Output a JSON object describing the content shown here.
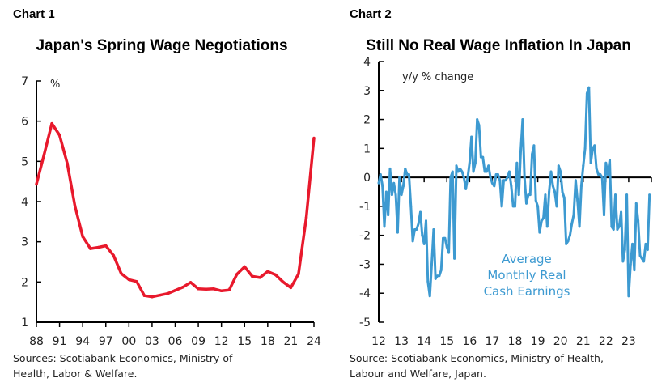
{
  "chart_data": [
    {
      "header": "Chart 1",
      "type": "line",
      "title": "Japan's Spring Wage Negotiations",
      "unit_label": "%",
      "ylim": [
        1,
        7
      ],
      "yticks": [
        1,
        2,
        3,
        4,
        5,
        6,
        7
      ],
      "xlim": [
        1988,
        2024
      ],
      "xticks": [
        1988,
        1991,
        1994,
        1997,
        2000,
        2003,
        2006,
        2009,
        2012,
        2015,
        2018,
        2021,
        2024
      ],
      "xtick_labels": [
        "88",
        "91",
        "94",
        "97",
        "00",
        "03",
        "06",
        "09",
        "12",
        "15",
        "18",
        "21",
        "24"
      ],
      "grid": false,
      "color": "#e8192c",
      "x": [
        1988,
        1989,
        1990,
        1991,
        1992,
        1993,
        1994,
        1995,
        1996,
        1997,
        1998,
        1999,
        2000,
        2001,
        2002,
        2003,
        2004,
        2005,
        2006,
        2007,
        2008,
        2009,
        2010,
        2011,
        2012,
        2013,
        2014,
        2015,
        2016,
        2017,
        2018,
        2019,
        2020,
        2021,
        2022,
        2023,
        2024
      ],
      "values": [
        4.43,
        5.17,
        5.94,
        5.65,
        4.95,
        3.89,
        3.13,
        2.83,
        2.86,
        2.9,
        2.66,
        2.21,
        2.06,
        2.01,
        1.66,
        1.63,
        1.67,
        1.71,
        1.79,
        1.87,
        1.99,
        1.83,
        1.82,
        1.83,
        1.78,
        1.8,
        2.19,
        2.38,
        2.14,
        2.11,
        2.26,
        2.18,
        2.0,
        1.86,
        2.2,
        3.6,
        5.58
      ],
      "source": [
        "Sources: Scotiabank Economics, Ministry of",
        "Health, Labor & Welfare."
      ]
    },
    {
      "header": "Chart 2",
      "type": "line",
      "title": "Still No Real Wage Inflation In Japan",
      "unit_label": "y/y % change",
      "ylim": [
        -5,
        4
      ],
      "yticks": [
        -5,
        -4,
        -3,
        -2,
        -1,
        0,
        1,
        2,
        3,
        4
      ],
      "xlim": [
        2012,
        2024
      ],
      "xticks": [
        2012,
        2013,
        2014,
        2015,
        2016,
        2017,
        2018,
        2019,
        2020,
        2021,
        2022,
        2023
      ],
      "xtick_labels": [
        "12",
        "13",
        "14",
        "15",
        "16",
        "17",
        "18",
        "19",
        "20",
        "21",
        "22",
        "23"
      ],
      "grid": false,
      "color": "#3d9ad1",
      "series": [
        {
          "name": "Average Monthly Real Cash Earnings",
          "name_lines": [
            "Average",
            "Monthly Real",
            "Cash Earnings"
          ],
          "start": "2012-01",
          "frequency": "monthly",
          "values": [
            -0.2,
            0.1,
            -0.3,
            -1.7,
            -0.5,
            -1.3,
            0.3,
            -0.6,
            -0.2,
            -0.6,
            -1.9,
            0.0,
            -0.6,
            -0.3,
            0.3,
            0.1,
            0.1,
            -1.0,
            -2.2,
            -1.8,
            -1.8,
            -1.6,
            -1.2,
            -2.0,
            -2.3,
            -1.5,
            -3.6,
            -4.1,
            -3.0,
            -1.8,
            -3.5,
            -3.4,
            -3.4,
            -3.2,
            -2.1,
            -2.1,
            -2.4,
            -2.6,
            0.0,
            0.2,
            -2.8,
            0.4,
            0.2,
            0.3,
            0.2,
            0.0,
            -0.4,
            0.0,
            0.5,
            1.4,
            0.2,
            0.5,
            2.0,
            1.8,
            0.7,
            0.7,
            0.2,
            0.2,
            0.4,
            0.0,
            -0.2,
            -0.3,
            0.1,
            0.1,
            -0.1,
            -1.0,
            -0.1,
            -0.1,
            0.0,
            0.2,
            -0.3,
            -1.0,
            -1.0,
            0.5,
            -0.6,
            0.9,
            2.0,
            0.0,
            -0.9,
            -0.6,
            -0.6,
            0.8,
            1.1,
            -0.8,
            -1.0,
            -1.9,
            -1.5,
            -1.4,
            -0.6,
            -1.7,
            -0.5,
            0.2,
            -0.3,
            -0.5,
            -1.0,
            0.4,
            0.2,
            -0.5,
            -0.7,
            -2.3,
            -2.2,
            -2.0,
            -1.6,
            -1.3,
            -0.1,
            -0.8,
            -1.7,
            -0.3,
            0.4,
            1.0,
            2.9,
            3.1,
            0.5,
            1.0,
            1.1,
            0.3,
            0.1,
            0.1,
            0.0,
            -1.3,
            0.5,
            0.1,
            0.6,
            -1.7,
            -1.8,
            -0.6,
            -1.8,
            -1.7,
            -1.2,
            -2.9,
            -2.5,
            -0.6,
            -4.1,
            -3.0,
            -2.3,
            -3.2,
            -0.9,
            -1.5,
            -2.7,
            -2.8,
            -2.9,
            -2.3,
            -2.5,
            -0.6
          ]
        }
      ],
      "source": [
        "Source: Scotiabank Economics, Ministry of Health,",
        "Labour and Welfare, Japan."
      ]
    }
  ]
}
